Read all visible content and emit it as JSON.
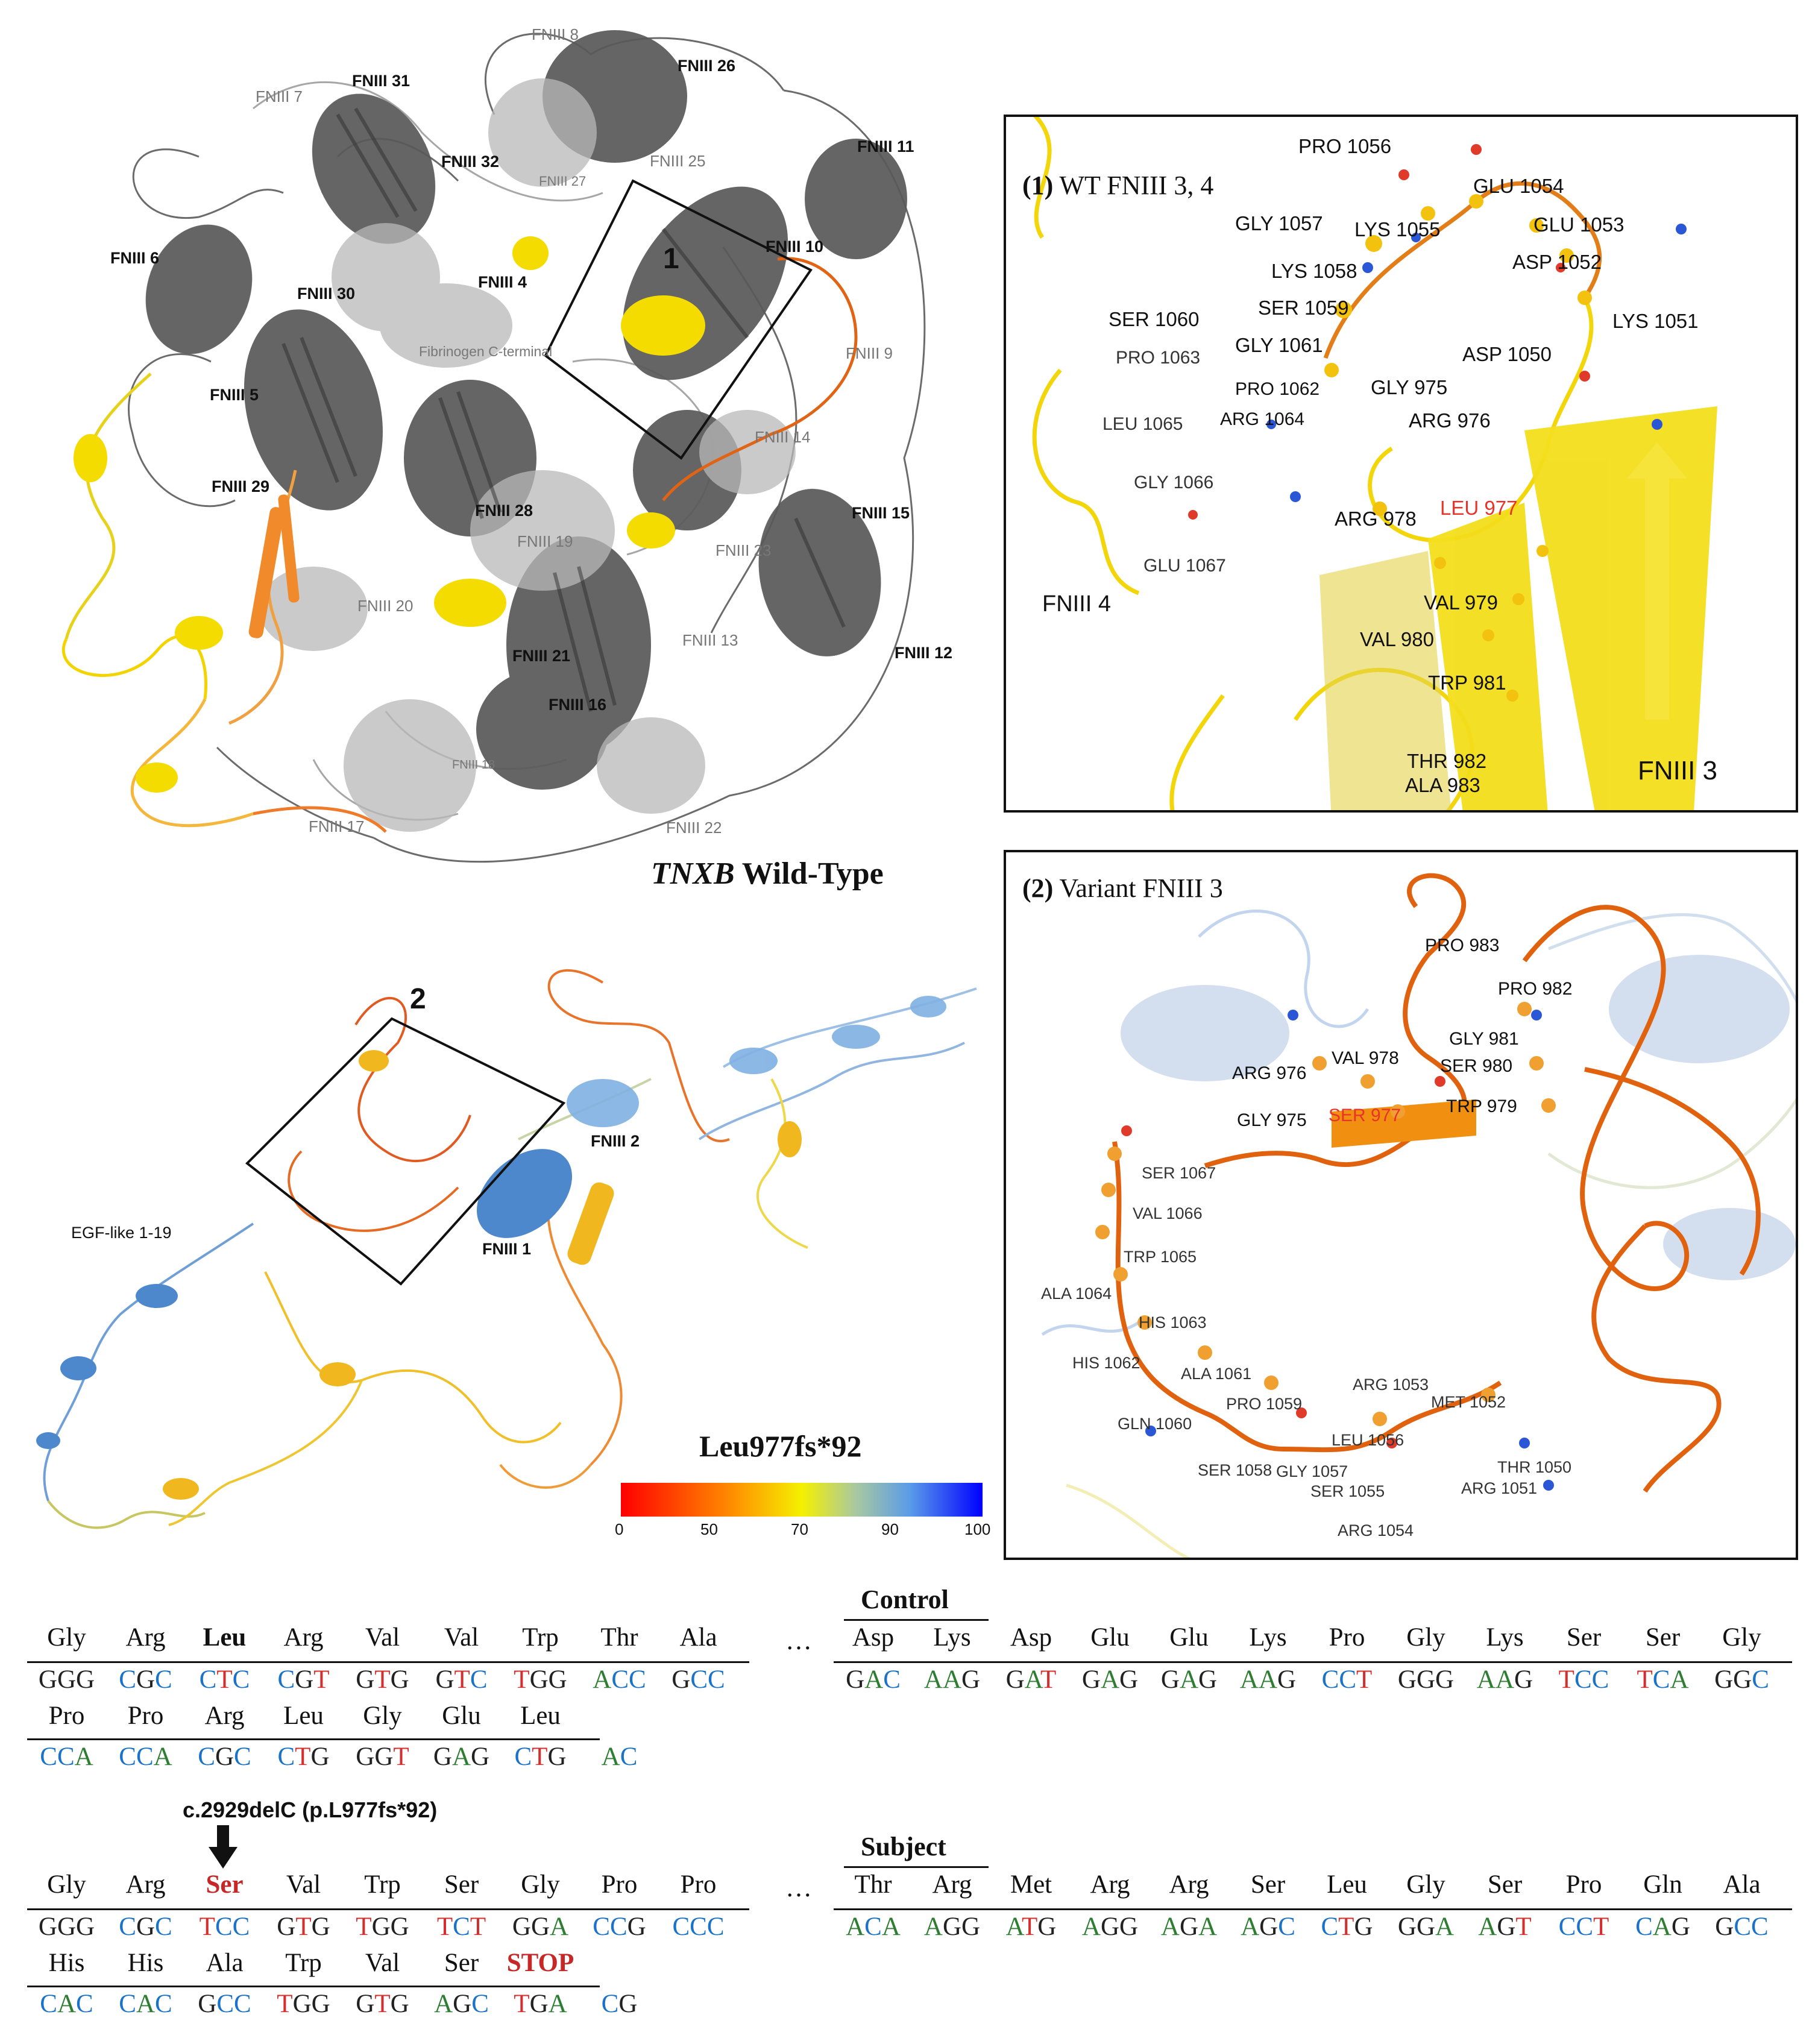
{
  "wildtype": {
    "title_italic": "TNXB",
    "title_rest": " Wild-Type",
    "box_label": "1",
    "labels_dark": [
      "FNIII 31",
      "FNIII 26",
      "FNIII 11",
      "FNIII 32",
      "FNIII 10",
      "FNIII 6",
      "FNIII 30",
      "FNIII 4",
      "FNIII 5",
      "FNIII 29",
      "FNIII 28",
      "FNIII 15",
      "FNIII 21",
      "FNIII 12",
      "FNIII 16"
    ],
    "labels_grey": [
      "FNIII 8",
      "FNIII 7",
      "FNIII 25",
      "FNIII 27",
      "FNIII 9",
      "Fibrinogen C-terminal",
      "FNIII 14",
      "FNIII 19",
      "FNIII 23",
      "FNIII 20",
      "FNIII 13",
      "FNIII 18",
      "FNIII 17",
      "FNIII 22"
    ]
  },
  "variant": {
    "box_label": "2",
    "labels": [
      "FNIII 2",
      "FNIII 1",
      "EGF-like 1-19"
    ],
    "colorbar_title": "Leu977fs*92",
    "colorbar_ticks": [
      "0",
      "50",
      "70",
      "90",
      "100"
    ]
  },
  "panel1": {
    "num": "(1)",
    "title": " WT FNIII 3, 4",
    "residues": [
      "PRO 1056",
      "GLU 1054",
      "GLU 1053",
      "LYS 1055",
      "GLY 1057",
      "LYS 1058",
      "ASP 1052",
      "SER 1059",
      "LYS 1051",
      "SER 1060",
      "GLY 1061",
      "PRO 1063",
      "PRO 1062",
      "ASP 1050",
      "GLY 975",
      "LEU 1065",
      "ARG 1064",
      "ARG 976",
      "GLY 1066",
      "ARG 978",
      "GLU 1067",
      "VAL 979",
      "VAL 980",
      "TRP 981",
      "THR 982",
      "ALA 983"
    ],
    "highlight": "LEU 977",
    "domain_left": "FNIII 4",
    "domain_right": "FNIII 3"
  },
  "panel2": {
    "num": "(2)",
    "title": " Variant FNIII 3",
    "residues": [
      "PRO 983",
      "PRO 982",
      "GLY 981",
      "ARG 976",
      "VAL 978",
      "SER 980",
      "TRP 979",
      "GLY 975",
      "SER 1067",
      "VAL 1066",
      "TRP 1065",
      "ALA 1064",
      "HIS 1063",
      "HIS 1062",
      "ALA 1061",
      "ARG 1053",
      "MET 1052",
      "PRO 1059",
      "GLN 1060",
      "LEU 1056",
      "THR 1050",
      "SER 1058",
      "GLY 1057",
      "ARG 1051",
      "SER 1055",
      "ARG 1054"
    ],
    "highlight": "SER 977"
  },
  "sequence": {
    "control_label": "Control",
    "subject_label": "Subject",
    "ellipsis": "…",
    "mutation_label": "c.2929delC (p.L977fs*92)",
    "control": {
      "aa1": [
        "Gly",
        "Arg",
        "Leu",
        "Arg",
        "Val",
        "Val",
        "Trp",
        "Thr",
        "Ala"
      ],
      "codon1": [
        "GGG",
        "CGC",
        "CTC",
        "CGT",
        "GTG",
        "GTC",
        "TGG",
        "ACC",
        "GCC"
      ],
      "aa2": [
        "Pro",
        "Pro",
        "Arg",
        "Leu",
        "Gly",
        "Glu",
        "Leu"
      ],
      "codon2": [
        "CCA",
        "CCA",
        "CGC",
        "CTG",
        "GGT",
        "GAG",
        "CTG",
        "AC"
      ],
      "aa_right": [
        "Asp",
        "Lys",
        "Asp",
        "Glu",
        "Glu",
        "Lys",
        "Pro",
        "Gly",
        "Lys",
        "Ser",
        "Ser",
        "Gly"
      ],
      "codon_right": [
        "GAC",
        "AAG",
        "GAT",
        "GAG",
        "GAG",
        "AAG",
        "CCT",
        "GGG",
        "AAG",
        "TCC",
        "TCA",
        "GGC"
      ]
    },
    "subject": {
      "aa1": [
        "Gly",
        "Arg",
        "Ser",
        "Val",
        "Trp",
        "Ser",
        "Gly",
        "Pro",
        "Pro"
      ],
      "codon1": [
        "GGG",
        "CGC",
        "TCC",
        "GTG",
        "TGG",
        "TCT",
        "GGA",
        "CCG",
        "CCC"
      ],
      "aa2": [
        "His",
        "His",
        "Ala",
        "Trp",
        "Val",
        "Ser",
        "STOP"
      ],
      "codon2": [
        "CAC",
        "CAC",
        "GCC",
        "TGG",
        "GTG",
        "AGC",
        "TGA",
        "CG"
      ],
      "aa_right": [
        "Thr",
        "Arg",
        "Met",
        "Arg",
        "Arg",
        "Ser",
        "Leu",
        "Gly",
        "Ser",
        "Pro",
        "Gln",
        "Ala"
      ],
      "codon_right": [
        "ACA",
        "AGG",
        "ATG",
        "AGG",
        "AGA",
        "AGC",
        "CTG",
        "GGA",
        "AGT",
        "CCT",
        "CAG",
        "GCC"
      ]
    },
    "colors": {
      "A": "#2e7d32",
      "C": "#1a73c9",
      "G": "#222222",
      "T": "#d32f2f",
      "highlight": "#c62828"
    }
  }
}
